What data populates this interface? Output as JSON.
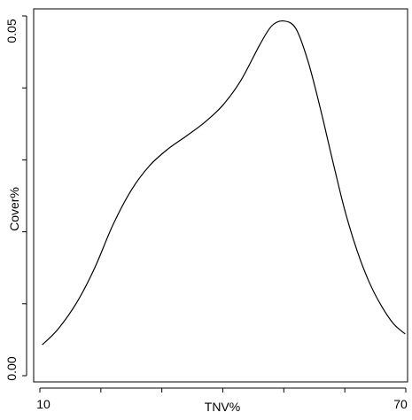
{
  "chart_data": {
    "type": "line",
    "xlabel": "TNV%",
    "ylabel": "Cover%",
    "xlim": [
      10,
      70
    ],
    "ylim": [
      0.0,
      0.05
    ],
    "x_tick_labels": [
      "10",
      "70"
    ],
    "y_tick_labels": [
      "0.00",
      "0.05"
    ],
    "x_tick_values": [
      10,
      20,
      30,
      40,
      50,
      60,
      70
    ],
    "y_tick_values": [
      0.0,
      0.01,
      0.02,
      0.03,
      0.04,
      0.05
    ],
    "grid": false,
    "series": [
      {
        "x": [
          10.4,
          13,
          16,
          19,
          22,
          25,
          28,
          31,
          34,
          37,
          40,
          43,
          46,
          48,
          50,
          52,
          54,
          56,
          58,
          60,
          62,
          64,
          66,
          68,
          69.9
        ],
        "y": [
          0.0043,
          0.0065,
          0.0101,
          0.015,
          0.021,
          0.0258,
          0.0292,
          0.0315,
          0.0333,
          0.0352,
          0.0376,
          0.0411,
          0.0459,
          0.0486,
          0.0493,
          0.0482,
          0.0436,
          0.0371,
          0.0299,
          0.023,
          0.0174,
          0.013,
          0.0097,
          0.0072,
          0.0058
        ]
      }
    ]
  }
}
